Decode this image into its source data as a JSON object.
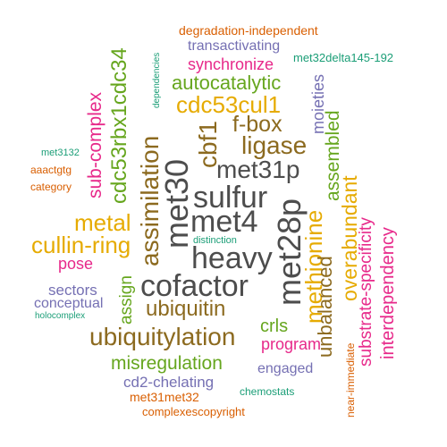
{
  "palette": {
    "dark_gray": "#4d4d4d",
    "brown": "#8c6a1f",
    "green": "#66a61e",
    "orange": "#d95f02",
    "magenta": "#e7298a",
    "purple": "#7570b3",
    "teal": "#1b9e77",
    "gold": "#e6ab02"
  },
  "words": [
    {
      "text": "degradation-independent",
      "color": "#d95f02",
      "rotated": false
    },
    {
      "text": "dependencies",
      "color": "#1b9e77",
      "rotated": true
    },
    {
      "text": "transactivating",
      "color": "#7570b3",
      "rotated": false
    },
    {
      "text": "met32delta145-192",
      "color": "#1b9e77",
      "rotated": false
    },
    {
      "text": "synchronize",
      "color": "#e7298a",
      "rotated": false
    },
    {
      "text": "cdc53rbx1cdc34",
      "color": "#66a61e",
      "rotated": true
    },
    {
      "text": "autocatalytic",
      "color": "#66a61e",
      "rotated": false
    },
    {
      "text": "cdc53cul1",
      "color": "#e6ab02",
      "rotated": false
    },
    {
      "text": "sub-complex",
      "color": "#e7298a",
      "rotated": true
    },
    {
      "text": "f-box",
      "color": "#8c6a1f",
      "rotated": false
    },
    {
      "text": "cbf1",
      "color": "#8c6a1f",
      "rotated": true
    },
    {
      "text": "moieties",
      "color": "#7570b3",
      "rotated": true
    },
    {
      "text": "ligase",
      "color": "#8c6a1f",
      "rotated": false
    },
    {
      "text": "assimilation",
      "color": "#8c6a1f",
      "rotated": true
    },
    {
      "text": "met31p",
      "color": "#4d4d4d",
      "rotated": false
    },
    {
      "text": "assembled",
      "color": "#66a61e",
      "rotated": true
    },
    {
      "text": "met30",
      "color": "#4d4d4d",
      "rotated": true
    },
    {
      "text": "met3132",
      "color": "#1b9e77",
      "rotated": false
    },
    {
      "text": "aaactgtg",
      "color": "#d95f02",
      "rotated": false
    },
    {
      "text": "category",
      "color": "#d95f02",
      "rotated": false
    },
    {
      "text": "sulfur",
      "color": "#4d4d4d",
      "rotated": false
    },
    {
      "text": "met4",
      "color": "#4d4d4d",
      "rotated": false
    },
    {
      "text": "overabundant",
      "color": "#e6ab02",
      "rotated": true
    },
    {
      "text": "met28p",
      "color": "#4d4d4d",
      "rotated": true
    },
    {
      "text": "methionine",
      "color": "#e6ab02",
      "rotated": true
    },
    {
      "text": "metal",
      "color": "#e6ab02",
      "rotated": false
    },
    {
      "text": "interdependency",
      "color": "#e7298a",
      "rotated": true
    },
    {
      "text": "substrate-specificity",
      "color": "#e7298a",
      "rotated": true
    },
    {
      "text": "distinction",
      "color": "#1b9e77",
      "rotated": false
    },
    {
      "text": "cullin-ring",
      "color": "#e6ab02",
      "rotated": false
    },
    {
      "text": "heavy",
      "color": "#4d4d4d",
      "rotated": false
    },
    {
      "text": "pose",
      "color": "#e7298a",
      "rotated": false
    },
    {
      "text": "unbalanced",
      "color": "#8c6a1f",
      "rotated": true
    },
    {
      "text": "cofactor",
      "color": "#4d4d4d",
      "rotated": false
    },
    {
      "text": "sectors",
      "color": "#7570b3",
      "rotated": false
    },
    {
      "text": "assign",
      "color": "#66a61e",
      "rotated": true
    },
    {
      "text": "conceptual",
      "color": "#7570b3",
      "rotated": false
    },
    {
      "text": "ubiquitin",
      "color": "#8c6a1f",
      "rotated": false
    },
    {
      "text": "holocomplex",
      "color": "#1b9e77",
      "rotated": false
    },
    {
      "text": "crls",
      "color": "#66a61e",
      "rotated": false
    },
    {
      "text": "ubiquitylation",
      "color": "#8c6a1f",
      "rotated": false
    },
    {
      "text": "program",
      "color": "#e7298a",
      "rotated": false
    },
    {
      "text": "near-immediate",
      "color": "#d95f02",
      "rotated": true
    },
    {
      "text": "misregulation",
      "color": "#66a61e",
      "rotated": false
    },
    {
      "text": "engaged",
      "color": "#7570b3",
      "rotated": false
    },
    {
      "text": "cd2-chelating",
      "color": "#7570b3",
      "rotated": false
    },
    {
      "text": "chemostats",
      "color": "#1b9e77",
      "rotated": false
    },
    {
      "text": "met31met32",
      "color": "#d95f02",
      "rotated": false
    },
    {
      "text": "complexescopyright",
      "color": "#d95f02",
      "rotated": false
    }
  ]
}
